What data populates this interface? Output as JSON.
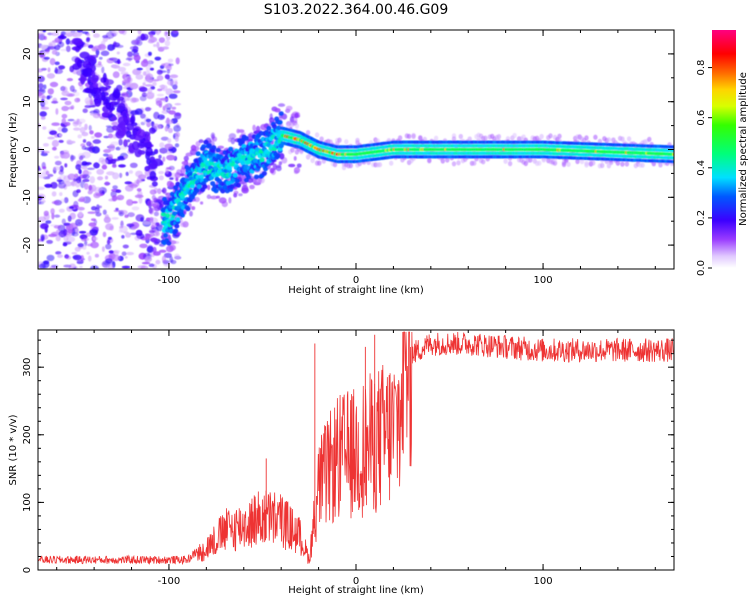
{
  "figure": {
    "title": "S103.2022.364.00.46.G09"
  },
  "chart_data": [
    {
      "type": "heatmap",
      "xlabel": "Height of straight line (km)",
      "ylabel": "Frequency (Hz)",
      "xlim": [
        -170,
        170
      ],
      "ylim": [
        -25,
        25
      ],
      "xticks": [
        -100,
        0,
        100
      ],
      "yticks": [
        -20,
        -10,
        0,
        10,
        20
      ],
      "colorbar": {
        "label": "Normalized spectral amplitude",
        "range": [
          0.0,
          0.95
        ],
        "ticks": [
          0.0,
          0.2,
          0.4,
          0.6,
          0.8
        ],
        "colormap": "rainbow"
      },
      "grid": false,
      "ridge": [
        {
          "x": -100,
          "y": -15
        },
        {
          "x": -90,
          "y": -8
        },
        {
          "x": -80,
          "y": -3
        },
        {
          "x": -70,
          "y": -5
        },
        {
          "x": -60,
          "y": -2
        },
        {
          "x": -50,
          "y": -1
        },
        {
          "x": -40,
          "y": 3
        },
        {
          "x": -30,
          "y": 2
        },
        {
          "x": -20,
          "y": 0
        },
        {
          "x": -10,
          "y": -1
        },
        {
          "x": 0,
          "y": -1
        },
        {
          "x": 20,
          "y": 0
        },
        {
          "x": 100,
          "y": 0
        },
        {
          "x": 170,
          "y": -1
        }
      ]
    },
    {
      "type": "line",
      "xlabel": "Height of straight line (km)",
      "ylabel": "SNR (10 * v/v)",
      "xlim": [
        -170,
        170
      ],
      "ylim": [
        0,
        355
      ],
      "xticks": [
        -100,
        0,
        100
      ],
      "yticks": [
        0,
        100,
        200,
        300
      ],
      "series_color": "#ee3333",
      "grid": false,
      "envelope": [
        {
          "x": -170,
          "y": 15
        },
        {
          "x": -90,
          "y": 15
        },
        {
          "x": -80,
          "y": 40
        },
        {
          "x": -70,
          "y": 70
        },
        {
          "x": -60,
          "y": 80
        },
        {
          "x": -50,
          "y": 95
        },
        {
          "x": -40,
          "y": 90
        },
        {
          "x": -30,
          "y": 60
        },
        {
          "x": -25,
          "y": 20
        },
        {
          "x": -20,
          "y": 150
        },
        {
          "x": -10,
          "y": 200
        },
        {
          "x": 0,
          "y": 210
        },
        {
          "x": 10,
          "y": 230
        },
        {
          "x": 20,
          "y": 250
        },
        {
          "x": 30,
          "y": 320
        },
        {
          "x": 40,
          "y": 335
        },
        {
          "x": 60,
          "y": 335
        },
        {
          "x": 100,
          "y": 325
        },
        {
          "x": 170,
          "y": 325
        }
      ],
      "spikes": [
        {
          "x": -22,
          "y": 335
        },
        {
          "x": 5,
          "y": 330
        },
        {
          "x": 10,
          "y": 348
        },
        {
          "x": -48,
          "y": 165
        }
      ]
    }
  ]
}
